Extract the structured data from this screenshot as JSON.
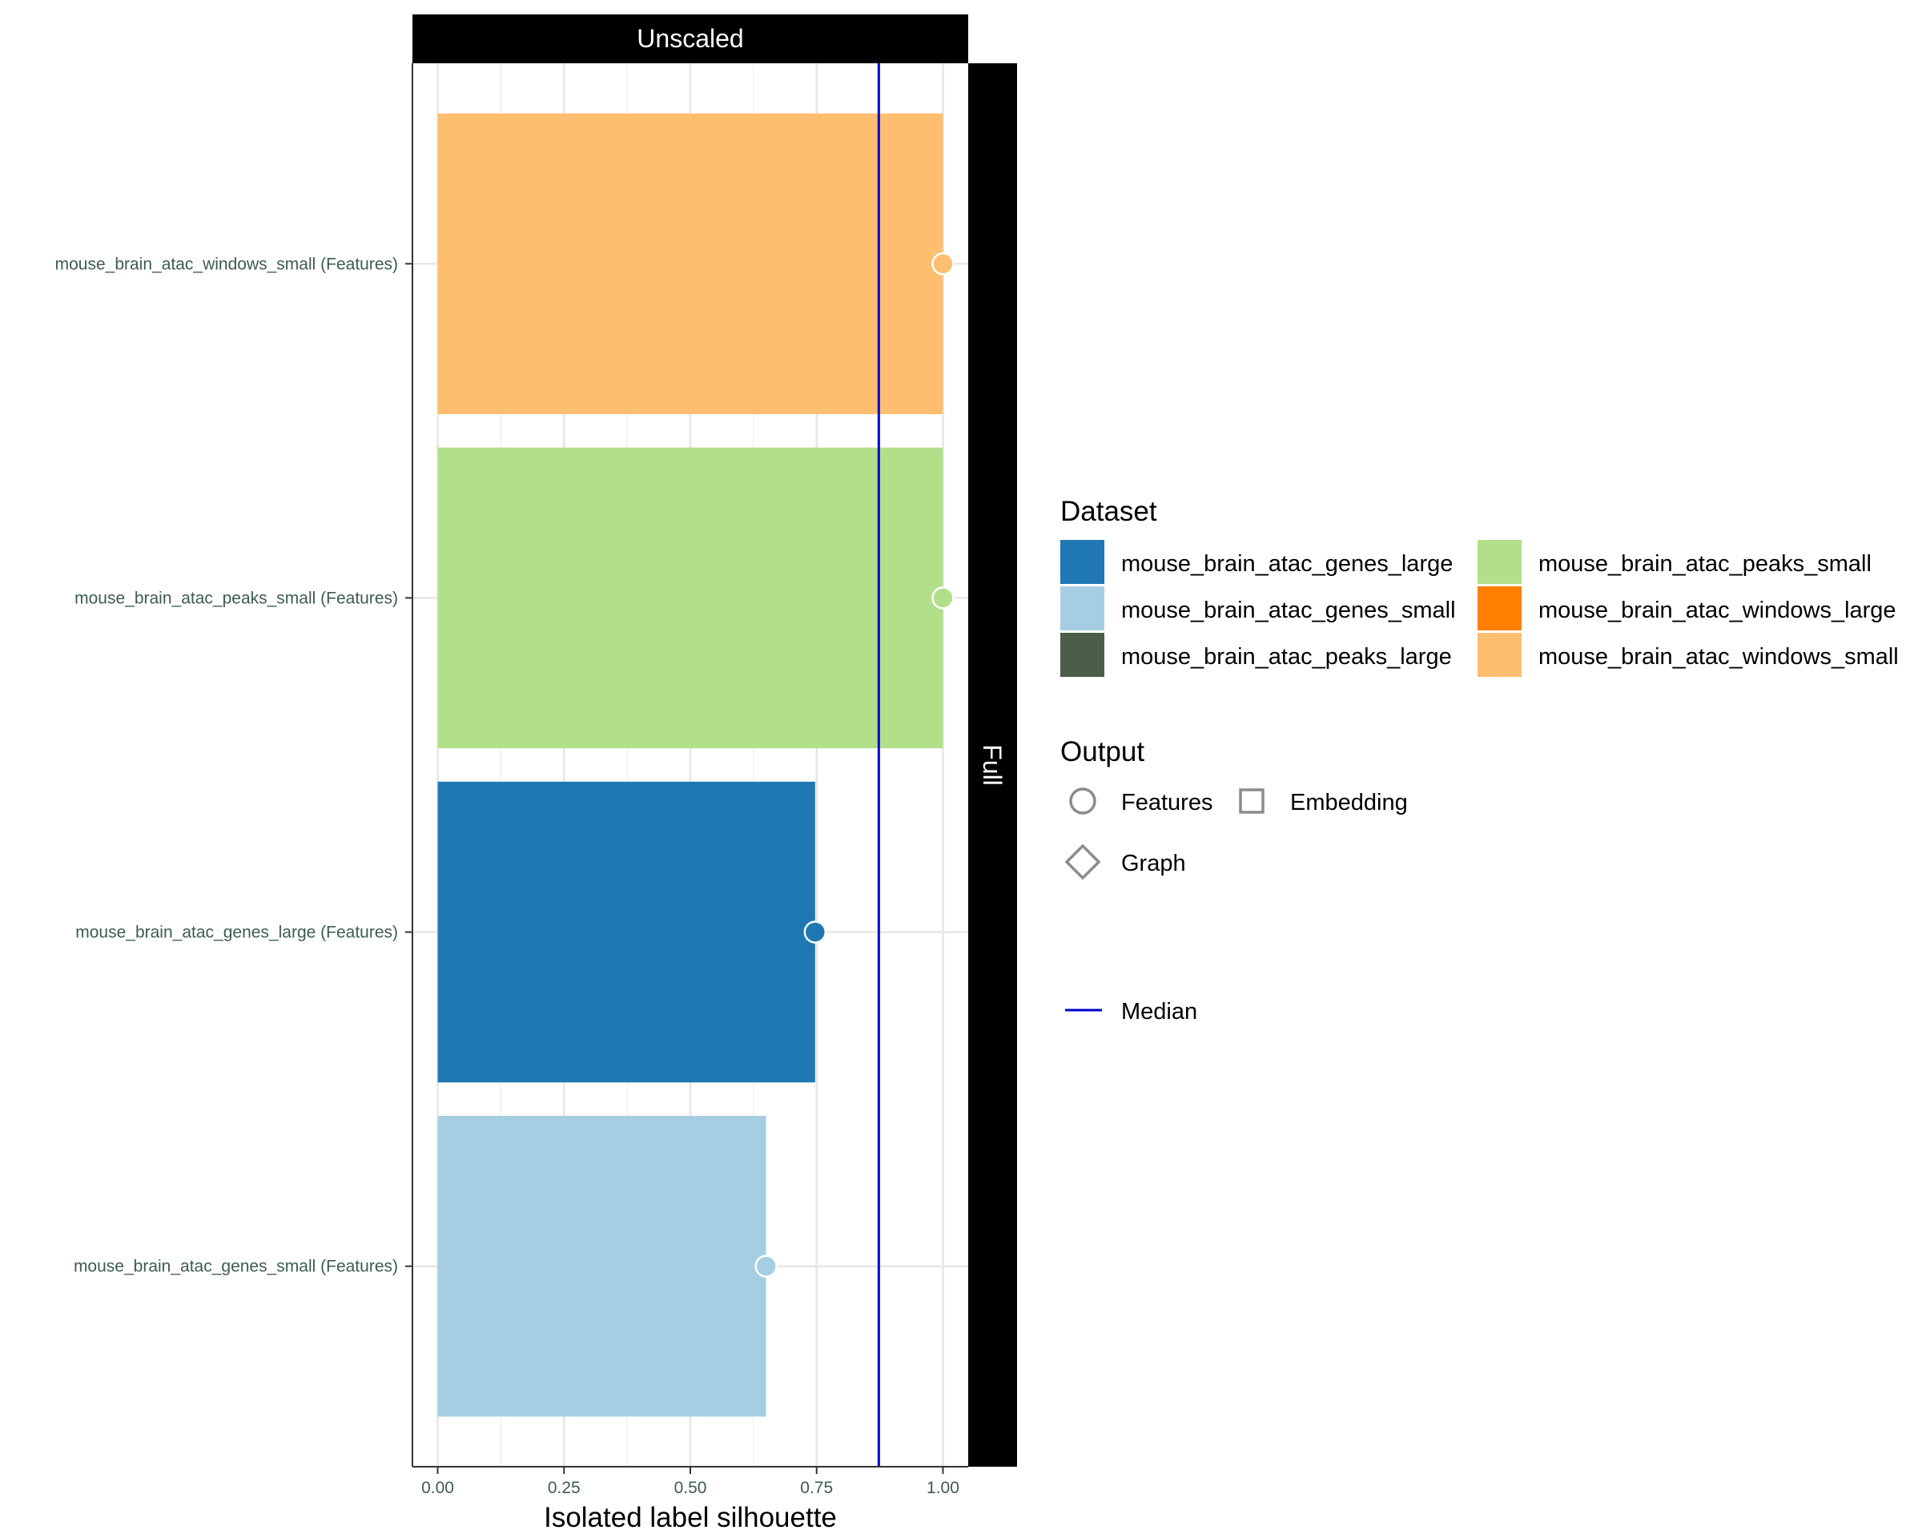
{
  "chart_data": {
    "type": "bar",
    "orientation": "horizontal",
    "facet_top": "Unscaled",
    "facet_right": "Full",
    "xlabel": "Isolated label silhouette",
    "xlim": [
      -0.05,
      1.05
    ],
    "x_ticks": [
      {
        "value": 0,
        "label": "0.00"
      },
      {
        "value": 0.25,
        "label": "0.25"
      },
      {
        "value": 0.5,
        "label": "0.50"
      },
      {
        "value": 0.75,
        "label": "0.75"
      },
      {
        "value": 1,
        "label": "1.00"
      }
    ],
    "grid": true,
    "median": 0.873,
    "bars": [
      {
        "label": "mouse_brain_atac_windows_small (Features)",
        "value": 1.0,
        "dataset": "mouse_brain_atac_windows_small",
        "output": "Features"
      },
      {
        "label": "mouse_brain_atac_peaks_small (Features)",
        "value": 1.0,
        "dataset": "mouse_brain_atac_peaks_small",
        "output": "Features"
      },
      {
        "label": "mouse_brain_atac_genes_large (Features)",
        "value": 0.747,
        "dataset": "mouse_brain_atac_genes_large",
        "output": "Features"
      },
      {
        "label": "mouse_brain_atac_genes_small (Features)",
        "value": 0.65,
        "dataset": "mouse_brain_atac_genes_small",
        "output": "Features"
      }
    ],
    "legend": {
      "placement": "right",
      "dataset_title": "Dataset",
      "datasets": [
        {
          "name": "mouse_brain_atac_genes_large",
          "color": "#1f78b4"
        },
        {
          "name": "mouse_brain_atac_genes_small",
          "color": "#a6cee3"
        },
        {
          "name": "mouse_brain_atac_peaks_large",
          "color": "#4a5e48"
        },
        {
          "name": "mouse_brain_atac_peaks_small",
          "color": "#b2df8a"
        },
        {
          "name": "mouse_brain_atac_windows_large",
          "color": "#ff7f00"
        },
        {
          "name": "mouse_brain_atac_windows_small",
          "color": "#fdbf6f"
        }
      ],
      "output_title": "Output",
      "outputs": [
        {
          "name": "Features",
          "shape": "circle"
        },
        {
          "name": "Embedding",
          "shape": "square"
        },
        {
          "name": "Graph",
          "shape": "diamond"
        }
      ],
      "median_label": "Median",
      "median_color": "#0000cc"
    }
  }
}
